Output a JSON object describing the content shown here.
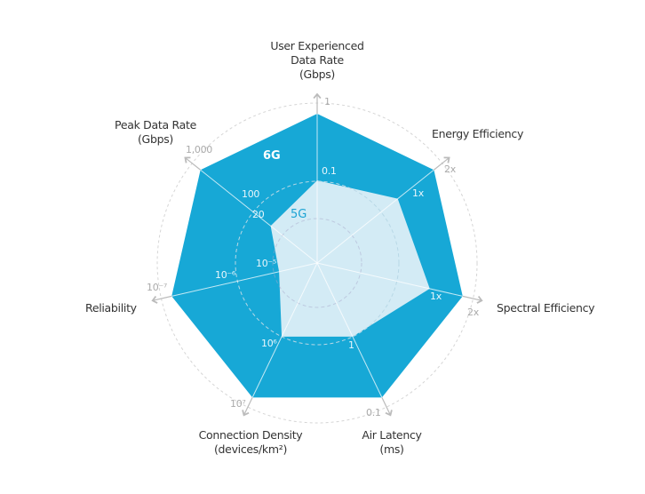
{
  "chart_data": {
    "type": "radar",
    "axes": [
      {
        "label": [
          "User Experienced",
          "Data Rate",
          "(Gbps)"
        ],
        "5G": "0.1",
        "6G": "1"
      },
      {
        "label": [
          "Energy Efficiency"
        ],
        "5G": "1x",
        "6G": "2x"
      },
      {
        "label": [
          "Spectral Efficiency"
        ],
        "5G": "1x",
        "6G": "2x"
      },
      {
        "label": [
          "Air Latency",
          "(ms)"
        ],
        "5G": "1",
        "6G": "0.1"
      },
      {
        "label": [
          "Connection Density",
          "(devices/km²)"
        ],
        "5G": "10⁶",
        "6G": "10⁷"
      },
      {
        "label": [
          "Reliability"
        ],
        "5G": "10⁻⁵",
        "6G": "10⁻⁷",
        "mid": "10⁻⁶"
      },
      {
        "label": [
          "Peak Data Rate",
          "(Gbps)"
        ],
        "5G": "20",
        "6G": "1,000",
        "mid": "100"
      }
    ],
    "series": [
      {
        "name": "6G",
        "color": "#17a8d6"
      },
      {
        "name": "5G",
        "color": "#d3ebf5"
      }
    ],
    "grid": "dashed circles",
    "legend": "inline labels"
  }
}
